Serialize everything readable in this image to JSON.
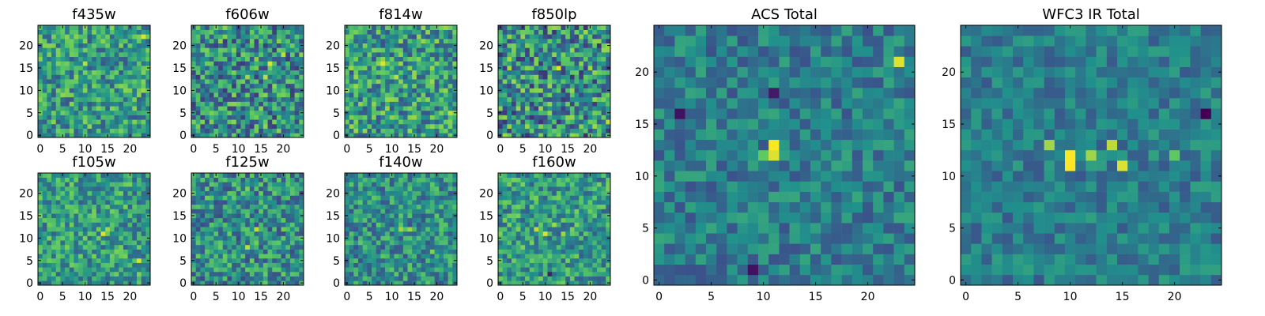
{
  "figure": {
    "colormap": "viridis",
    "colormap_stops": [
      "#440154",
      "#3b528b",
      "#21918c",
      "#5ec962",
      "#fde725"
    ]
  },
  "chart_data": [
    {
      "type": "heatmap",
      "title": "f435w",
      "rows": 25,
      "cols": 25,
      "xlim": [
        0,
        24
      ],
      "ylim": [
        0,
        24
      ],
      "xticks": [
        0,
        5,
        10,
        15,
        20
      ],
      "yticks": [
        0,
        5,
        10,
        15,
        20
      ],
      "xtick_labels": [
        "0",
        "5",
        "10",
        "15",
        "20"
      ],
      "ytick_labels": [
        "0",
        "5",
        "10",
        "15",
        "20"
      ],
      "value_range": [
        0,
        1
      ],
      "noise": {
        "seed": 11,
        "amp": 0.55,
        "base": 0.55
      },
      "peaks": [
        {
          "x": 23,
          "y": 22,
          "v": 0.95
        },
        {
          "x": 10,
          "y": 16,
          "v": 0.9
        },
        {
          "x": 23,
          "y": 10,
          "v": 0.85
        }
      ]
    },
    {
      "type": "heatmap",
      "title": "f606w",
      "rows": 25,
      "cols": 25,
      "xlim": [
        0,
        24
      ],
      "ylim": [
        0,
        24
      ],
      "xticks": [
        0,
        5,
        10,
        15,
        20
      ],
      "yticks": [
        0,
        5,
        10,
        15,
        20
      ],
      "xtick_labels": [
        "0",
        "5",
        "10",
        "15",
        "20"
      ],
      "ytick_labels": [
        "0",
        "5",
        "10",
        "15",
        "20"
      ],
      "value_range": [
        0,
        1
      ],
      "noise": {
        "seed": 23,
        "amp": 0.65,
        "base": 0.5
      },
      "peaks": [
        {
          "x": 17,
          "y": 16,
          "v": 0.95
        },
        {
          "x": 12,
          "y": 13,
          "v": 0.85
        },
        {
          "x": 20,
          "y": 18,
          "v": 0.9
        },
        {
          "x": 16,
          "y": 13,
          "v": 0.9
        }
      ]
    },
    {
      "type": "heatmap",
      "title": "f814w",
      "rows": 25,
      "cols": 25,
      "xlim": [
        0,
        24
      ],
      "ylim": [
        0,
        24
      ],
      "xticks": [
        0,
        5,
        10,
        15,
        20
      ],
      "yticks": [
        0,
        5,
        10,
        15,
        20
      ],
      "xtick_labels": [
        "0",
        "5",
        "10",
        "15",
        "20"
      ],
      "ytick_labels": [
        "0",
        "5",
        "10",
        "15",
        "20"
      ],
      "value_range": [
        0,
        1
      ],
      "noise": {
        "seed": 37,
        "amp": 0.6,
        "base": 0.55
      },
      "peaks": [
        {
          "x": 8,
          "y": 16,
          "v": 0.95
        },
        {
          "x": 11,
          "y": 13,
          "v": 0.9
        },
        {
          "x": 23,
          "y": 5,
          "v": 0.9
        }
      ]
    },
    {
      "type": "heatmap",
      "title": "f850lp",
      "rows": 25,
      "cols": 25,
      "xlim": [
        0,
        24
      ],
      "ylim": [
        0,
        24
      ],
      "xticks": [
        0,
        5,
        10,
        15,
        20
      ],
      "yticks": [
        0,
        5,
        10,
        15,
        20
      ],
      "xtick_labels": [
        "0",
        "5",
        "10",
        "15",
        "20"
      ],
      "ytick_labels": [
        "0",
        "5",
        "10",
        "15",
        "20"
      ],
      "value_range": [
        0,
        1
      ],
      "noise": {
        "seed": 41,
        "amp": 0.7,
        "base": 0.5
      },
      "peaks": [
        {
          "x": 13,
          "y": 15,
          "v": 0.95
        },
        {
          "x": 24,
          "y": 3,
          "v": 0.9
        }
      ]
    },
    {
      "type": "heatmap",
      "title": "f105w",
      "rows": 25,
      "cols": 25,
      "xlim": [
        0,
        24
      ],
      "ylim": [
        0,
        24
      ],
      "xticks": [
        0,
        5,
        10,
        15,
        20
      ],
      "yticks": [
        0,
        5,
        10,
        15,
        20
      ],
      "xtick_labels": [
        "0",
        "5",
        "10",
        "15",
        "20"
      ],
      "ytick_labels": [
        "0",
        "5",
        "10",
        "15",
        "20"
      ],
      "value_range": [
        0,
        1
      ],
      "noise": {
        "seed": 53,
        "amp": 0.5,
        "base": 0.55
      },
      "peaks": [
        {
          "x": 14,
          "y": 11,
          "v": 0.95
        },
        {
          "x": 22,
          "y": 5,
          "v": 0.95
        },
        {
          "x": 15,
          "y": 12,
          "v": 0.85
        }
      ]
    },
    {
      "type": "heatmap",
      "title": "f125w",
      "rows": 25,
      "cols": 25,
      "xlim": [
        0,
        24
      ],
      "ylim": [
        0,
        24
      ],
      "xticks": [
        0,
        5,
        10,
        15,
        20
      ],
      "yticks": [
        0,
        5,
        10,
        15,
        20
      ],
      "xtick_labels": [
        "0",
        "5",
        "10",
        "15",
        "20"
      ],
      "ytick_labels": [
        "0",
        "5",
        "10",
        "15",
        "20"
      ],
      "value_range": [
        0,
        1
      ],
      "noise": {
        "seed": 67,
        "amp": 0.55,
        "base": 0.5
      },
      "peaks": [
        {
          "x": 14,
          "y": 12,
          "v": 0.9
        },
        {
          "x": 12,
          "y": 8,
          "v": 0.9
        },
        {
          "x": 12,
          "y": 21,
          "v": 0.8
        }
      ]
    },
    {
      "type": "heatmap",
      "title": "f140w",
      "rows": 25,
      "cols": 25,
      "xlim": [
        0,
        24
      ],
      "ylim": [
        0,
        24
      ],
      "xticks": [
        0,
        5,
        10,
        15,
        20
      ],
      "yticks": [
        0,
        5,
        10,
        15,
        20
      ],
      "xtick_labels": [
        "0",
        "5",
        "10",
        "15",
        "20"
      ],
      "ytick_labels": [
        "0",
        "5",
        "10",
        "15",
        "20"
      ],
      "value_range": [
        0,
        1
      ],
      "noise": {
        "seed": 79,
        "amp": 0.5,
        "base": 0.5
      },
      "peaks": [
        {
          "x": 12,
          "y": 12,
          "v": 0.85
        },
        {
          "x": 14,
          "y": 12,
          "v": 0.85
        },
        {
          "x": 19,
          "y": 7,
          "v": 0.8
        }
      ]
    },
    {
      "type": "heatmap",
      "title": "f160w",
      "rows": 25,
      "cols": 25,
      "xlim": [
        0,
        24
      ],
      "ylim": [
        0,
        24
      ],
      "xticks": [
        0,
        5,
        10,
        15,
        20
      ],
      "yticks": [
        0,
        5,
        10,
        15,
        20
      ],
      "xtick_labels": [
        "0",
        "5",
        "10",
        "15",
        "20"
      ],
      "ytick_labels": [
        "0",
        "5",
        "10",
        "15",
        "20"
      ],
      "value_range": [
        0,
        1
      ],
      "noise": {
        "seed": 83,
        "amp": 0.5,
        "base": 0.55
      },
      "peaks": [
        {
          "x": 10,
          "y": 11,
          "v": 0.95
        },
        {
          "x": 8,
          "y": 12,
          "v": 0.9
        },
        {
          "x": 12,
          "y": 13,
          "v": 0.85
        },
        {
          "x": 14,
          "y": 11,
          "v": 0.85
        },
        {
          "x": 11,
          "y": 2,
          "v": 0.1
        }
      ]
    },
    {
      "type": "heatmap",
      "title": "ACS Total",
      "rows": 25,
      "cols": 25,
      "xlim": [
        0,
        24
      ],
      "ylim": [
        0,
        24
      ],
      "xticks": [
        0,
        5,
        10,
        15,
        20
      ],
      "yticks": [
        0,
        5,
        10,
        15,
        20
      ],
      "xtick_labels": [
        "0",
        "5",
        "10",
        "15",
        "20"
      ],
      "ytick_labels": [
        "0",
        "5",
        "10",
        "15",
        "20"
      ],
      "value_range": [
        0,
        1
      ],
      "noise": {
        "seed": 97,
        "amp": 0.35,
        "base": 0.42
      },
      "peaks": [
        {
          "x": 11,
          "y": 13,
          "v": 1.0
        },
        {
          "x": 11,
          "y": 12,
          "v": 0.95
        },
        {
          "x": 23,
          "y": 21,
          "v": 0.95
        },
        {
          "x": 10,
          "y": 12,
          "v": 0.75
        },
        {
          "x": 2,
          "y": 16,
          "v": 0.05
        },
        {
          "x": 11,
          "y": 18,
          "v": 0.08
        },
        {
          "x": 9,
          "y": 1,
          "v": 0.05
        }
      ]
    },
    {
      "type": "heatmap",
      "title": "WFC3 IR Total",
      "rows": 25,
      "cols": 25,
      "xlim": [
        0,
        24
      ],
      "ylim": [
        0,
        24
      ],
      "xticks": [
        0,
        5,
        10,
        15,
        20
      ],
      "yticks": [
        0,
        5,
        10,
        15,
        20
      ],
      "xtick_labels": [
        "0",
        "5",
        "10",
        "15",
        "20"
      ],
      "ytick_labels": [
        "0",
        "5",
        "10",
        "15",
        "20"
      ],
      "value_range": [
        0,
        1
      ],
      "noise": {
        "seed": 103,
        "amp": 0.3,
        "base": 0.42
      },
      "peaks": [
        {
          "x": 10,
          "y": 12,
          "v": 1.0
        },
        {
          "x": 10,
          "y": 11,
          "v": 1.0
        },
        {
          "x": 15,
          "y": 11,
          "v": 0.95
        },
        {
          "x": 14,
          "y": 13,
          "v": 0.9
        },
        {
          "x": 8,
          "y": 13,
          "v": 0.85
        },
        {
          "x": 12,
          "y": 12,
          "v": 0.85
        },
        {
          "x": 20,
          "y": 12,
          "v": 0.75
        },
        {
          "x": 23,
          "y": 16,
          "v": 0.0
        }
      ]
    }
  ]
}
